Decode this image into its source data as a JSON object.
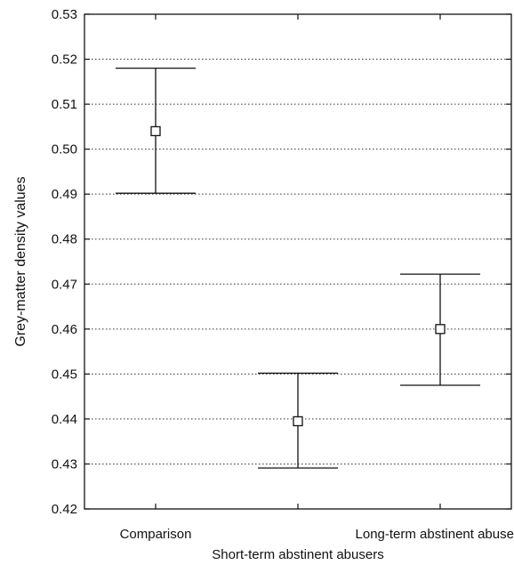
{
  "chart_data": {
    "type": "errorbar",
    "categories": [
      "Comparison",
      "Short-term abstinent abusers",
      "Long-term abstinent abusers"
    ],
    "series": [
      {
        "mean": [
          0.504,
          0.4395,
          0.46
        ],
        "upper": [
          0.518,
          0.4502,
          0.4722
        ],
        "lower": [
          0.4902,
          0.4291,
          0.4475
        ]
      }
    ],
    "ylabel": "Grey-matter density values",
    "xlabel": "",
    "ylim": [
      0.42,
      0.53
    ],
    "yticks": [
      "0.42",
      "0.43",
      "0.44",
      "0.45",
      "0.46",
      "0.47",
      "0.48",
      "0.49",
      "0.50",
      "0.51",
      "0.52",
      "0.53"
    ],
    "grid": "horizontal-dotted",
    "marker": "open-square",
    "colors": {
      "line": "#111111",
      "marker_fill": "#ffffff",
      "grid": "#333333"
    }
  }
}
